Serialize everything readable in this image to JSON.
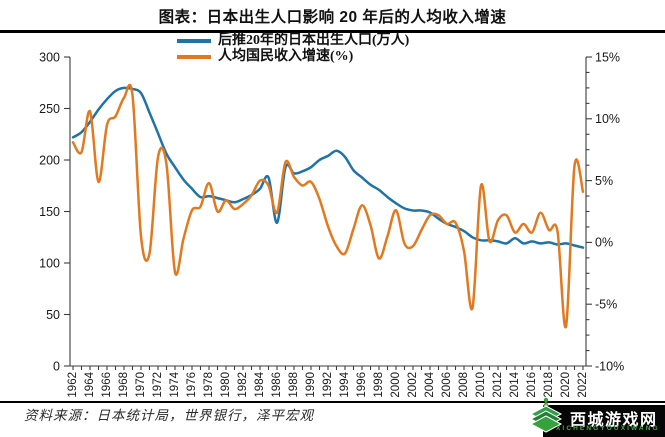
{
  "title": "图表：日本出生人口影响 20 年后的人均收入增速",
  "source_note": "资料来源：日本统计局，世界银行，泽平宏观",
  "watermark": {
    "site_name": "西城游戏网",
    "site_romanized": "XICHENGYOUXIWANG",
    "green": "#3fae3f",
    "logo_icon": "layered-diamond-book-with-tree-icon"
  },
  "chart_data": {
    "type": "line",
    "title": "图表：日本出生人口影响 20 年后的人均收入增速",
    "legend_position": "top-center",
    "grid": false,
    "x_axis": {
      "first_year": 1962,
      "last_year": 2022,
      "tick_every_years": 1,
      "label_every_years": 2,
      "labels": [
        "1962",
        "1964",
        "1966",
        "1968",
        "1970",
        "1972",
        "1974",
        "1976",
        "1978",
        "1980",
        "1982",
        "1984",
        "1986",
        "1988",
        "1990",
        "1992",
        "1994",
        "1996",
        "1998",
        "2000",
        "2002",
        "2004",
        "2006",
        "2008",
        "2010",
        "2012",
        "2014",
        "2016",
        "2018",
        "2020",
        "2022"
      ]
    },
    "left_axis": {
      "min": 0,
      "max": 300,
      "tick_step": 50,
      "labels": [
        "300",
        "250",
        "200",
        "150",
        "100",
        "50",
        "0"
      ]
    },
    "right_axis": {
      "min": -10,
      "max": 15,
      "major_step": 5,
      "minor_step": 1.25,
      "labels": [
        "15%",
        "10%",
        "5%",
        "0%",
        "-5%",
        "-10%"
      ]
    },
    "years": [
      1962,
      1963,
      1964,
      1965,
      1966,
      1967,
      1968,
      1969,
      1970,
      1971,
      1972,
      1973,
      1974,
      1975,
      1976,
      1977,
      1978,
      1979,
      1980,
      1981,
      1982,
      1983,
      1984,
      1985,
      1986,
      1987,
      1988,
      1989,
      1990,
      1991,
      1992,
      1993,
      1994,
      1995,
      1996,
      1997,
      1998,
      1999,
      2000,
      2001,
      2002,
      2003,
      2004,
      2005,
      2006,
      2007,
      2008,
      2009,
      2010,
      2011,
      2012,
      2013,
      2014,
      2015,
      2016,
      2017,
      2018,
      2019,
      2020,
      2021,
      2022
    ],
    "series": [
      {
        "name": "后推20年的日本出生人口(万人)",
        "axis": "left",
        "color": "#1E73A8",
        "values": [
          222,
          227,
          237,
          249,
          259,
          267,
          270,
          269,
          265,
          246,
          226,
          206,
          193,
          181,
          172,
          164,
          165,
          163,
          161,
          159,
          162,
          166,
          172,
          183,
          139,
          193,
          187,
          189,
          193,
          200,
          204,
          209,
          203,
          190,
          183,
          176,
          171,
          164,
          158,
          153,
          151,
          151,
          149,
          143,
          138,
          135,
          131,
          125,
          122,
          122,
          121,
          119,
          124,
          119,
          121,
          119,
          120,
          118,
          119,
          117,
          115
        ]
      },
      {
        "name": "人均国民收入增速(%)",
        "axis": "right",
        "color": "#E2791F",
        "values": [
          8.1,
          7.3,
          10.6,
          4.9,
          9.5,
          10.2,
          11.7,
          11.9,
          0.5,
          -0.9,
          6.9,
          6.3,
          -2.4,
          0.3,
          2.6,
          2.9,
          4.8,
          2.5,
          3.4,
          2.7,
          3.1,
          3.8,
          5.0,
          4.6,
          2.4,
          6.5,
          5.3,
          4.6,
          4.9,
          3.5,
          1.3,
          -0.3,
          -0.9,
          1.1,
          3.0,
          1.4,
          -1.3,
          0.5,
          2.6,
          -0.1,
          -0.3,
          1.0,
          2.2,
          2.2,
          1.5,
          1.6,
          -0.7,
          -5.3,
          4.6,
          0.1,
          1.8,
          2.2,
          0.8,
          1.5,
          0.8,
          2.4,
          1.0,
          0.9,
          -6.8,
          6.2,
          4.1
        ]
      }
    ],
    "axis_color": "#3d3d3d",
    "tick_label_color": "#1a1a1a"
  }
}
